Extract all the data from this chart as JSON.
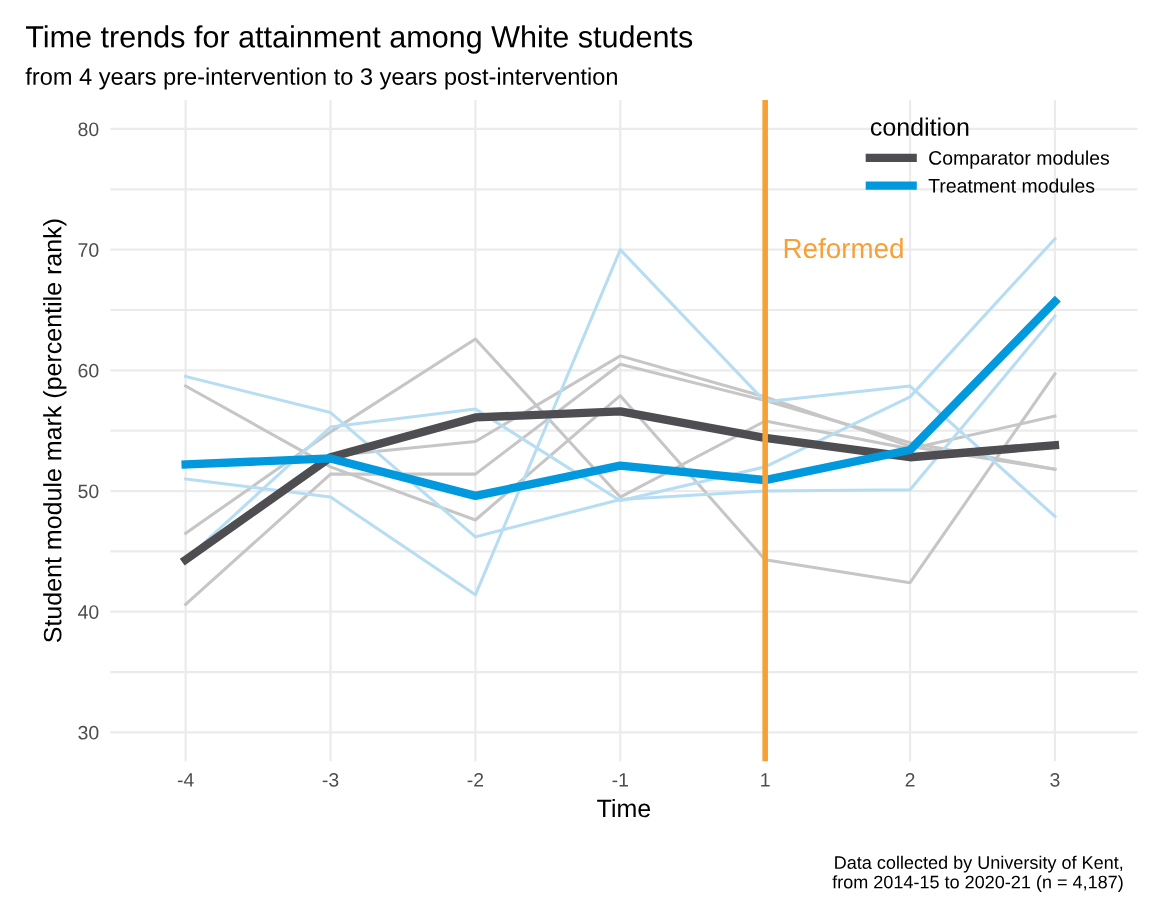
{
  "chart_data": {
    "type": "line",
    "title": "Time trends for attainment among White students",
    "subtitle": "from 4 years pre-intervention to 3 years post-intervention",
    "xlabel": "Time",
    "ylabel": "Student module mark (percentile rank)",
    "legend_title": "condition",
    "categories": [
      "-4",
      "-3",
      "-2",
      "-1",
      "1",
      "2",
      "3"
    ],
    "series": [
      {
        "color": "#c6c6c6",
        "values": [
          58.7,
          52.0,
          47.6,
          57.9,
          44.3,
          42.4,
          59.7
        ]
      },
      {
        "color": "#c6c6c6",
        "values": [
          46.5,
          54.9,
          62.6,
          49.5,
          55.8,
          53.5,
          56.2
        ]
      },
      {
        "color": "#c6c6c6",
        "values": [
          40.6,
          51.4,
          51.4,
          60.5,
          57.5,
          54.0,
          51.8
        ]
      },
      {
        "color": "#c6c6c6",
        "values": [
          52.0,
          52.9,
          54.1,
          61.2,
          57.8,
          53.7,
          51.8
        ]
      },
      {
        "color": "#b7ddf3",
        "values": [
          59.5,
          56.5,
          46.2,
          49.3,
          50.0,
          50.1,
          64.5
        ]
      },
      {
        "color": "#b7ddf3",
        "values": [
          51.0,
          49.5,
          41.4,
          70.0,
          57.4,
          58.7,
          47.9
        ]
      },
      {
        "color": "#b7ddf3",
        "values": [
          44.3,
          55.3,
          56.8,
          49.2,
          52.0,
          57.8,
          70.9
        ]
      },
      {
        "name": "Comparator modules",
        "color": "#4d4d52",
        "values": [
          44.3,
          52.8,
          56.1,
          56.6,
          54.4,
          52.8,
          53.8
        ]
      },
      {
        "name": "Treatment modules",
        "color": "#0099dd",
        "values": [
          52.2,
          52.7,
          49.6,
          52.1,
          50.9,
          53.4,
          65.7
        ]
      }
    ],
    "ylim": [
      27.6,
      82.4
    ],
    "yticks": [
      30,
      {
        "value": 35,
        "label": null
      },
      40,
      {
        "value": 45,
        "label": null
      },
      50,
      {
        "value": 55,
        "label": null
      },
      60,
      {
        "value": 65,
        "label": null
      },
      70,
      {
        "value": 75,
        "label": null
      },
      80
    ],
    "ref_lines": [
      {
        "axis": "x",
        "value": "1",
        "label": "Reformed",
        "color": "#f7a035"
      }
    ],
    "annotations": [
      "Data collected by University of Kent,\nfrom 2014-15 to 2020-21 (n = 4,187)"
    ],
    "grid": true,
    "legend": "top right",
    "marker": "none",
    "line_style": "solid"
  }
}
